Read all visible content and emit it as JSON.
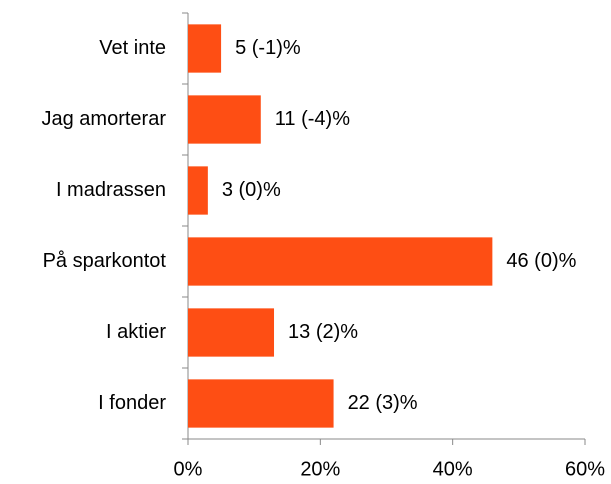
{
  "chart_data": {
    "type": "hbar",
    "categories": [
      "Vet inte",
      "Jag amorterar",
      "I madrassen",
      "På sparkontot",
      "I aktier",
      "I fonder"
    ],
    "values": [
      5,
      11,
      3,
      46,
      13,
      22
    ],
    "value_labels": [
      "5 (-1)%",
      "11 (-4)%",
      "3 (0)%",
      "46 (0)%",
      "13 (2)%",
      "22 (3)%"
    ],
    "color": "#fe4e14",
    "xlim": [
      0,
      60
    ],
    "xticks": [
      {
        "value": 0,
        "label": "0%"
      },
      {
        "value": 20,
        "label": "20%"
      },
      {
        "value": 40,
        "label": "40%"
      },
      {
        "value": 60,
        "label": "60%"
      }
    ]
  }
}
